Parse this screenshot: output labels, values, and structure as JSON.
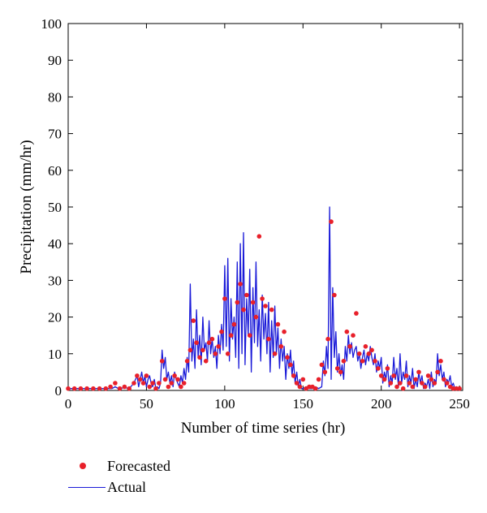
{
  "chart_data": {
    "type": "line",
    "xlabel": "Number of time series (hr)",
    "ylabel": "Precipitation (mm/hr)",
    "xlim": [
      0,
      252
    ],
    "ylim": [
      0,
      100
    ],
    "xticks": [
      0,
      50,
      100,
      150,
      200,
      250
    ],
    "yticks": [
      0,
      10,
      20,
      30,
      40,
      50,
      60,
      70,
      80,
      90,
      100
    ],
    "grid": false,
    "legend_position": "bottom-left, outside plot",
    "series": [
      {
        "name": "Forecasted",
        "style": "markers",
        "color": "#e8202a",
        "x": [
          0,
          4,
          8,
          12,
          16,
          20,
          24,
          27,
          30,
          33,
          36,
          39,
          42,
          44,
          46,
          48,
          50,
          52,
          54,
          56,
          58,
          60,
          62,
          64,
          66,
          68,
          70,
          72,
          74,
          76,
          78,
          80,
          82,
          84,
          86,
          88,
          90,
          92,
          94,
          96,
          98,
          100,
          102,
          104,
          106,
          108,
          110,
          112,
          114,
          116,
          118,
          120,
          122,
          124,
          126,
          128,
          130,
          132,
          134,
          136,
          138,
          140,
          142,
          144,
          146,
          148,
          150,
          152,
          154,
          156,
          158,
          160,
          162,
          164,
          166,
          168,
          170,
          172,
          174,
          176,
          178,
          180,
          182,
          184,
          186,
          188,
          190,
          192,
          194,
          196,
          198,
          200,
          202,
          204,
          206,
          208,
          210,
          212,
          214,
          216,
          218,
          220,
          222,
          224,
          226,
          228,
          230,
          232,
          234,
          236,
          238,
          240,
          242,
          244,
          246,
          248,
          250
        ],
        "y": [
          0.5,
          0.5,
          0.5,
          0.5,
          0.5,
          0.5,
          0.5,
          1,
          2,
          0.5,
          1,
          0.5,
          2,
          4,
          3,
          2,
          4,
          1,
          2,
          0.5,
          2,
          8,
          3,
          1,
          2,
          4,
          3,
          1,
          2,
          8,
          11,
          19,
          13,
          9,
          11,
          8,
          13,
          14,
          10,
          12,
          16,
          25,
          10,
          15,
          18,
          24,
          29,
          22,
          26,
          15,
          24,
          20,
          42,
          25,
          23,
          14,
          22,
          10,
          18,
          12,
          16,
          9,
          7,
          4,
          2,
          1,
          3,
          0.5,
          1,
          1,
          0.5,
          3,
          7,
          5,
          14,
          46,
          26,
          6,
          5,
          8,
          16,
          12,
          15,
          21,
          10,
          8,
          12,
          10,
          11,
          8,
          6,
          4,
          3,
          6,
          2,
          4,
          1,
          2,
          0.5,
          4,
          2,
          1,
          3,
          5,
          2,
          1,
          4,
          3,
          2,
          5,
          8,
          3,
          2,
          1,
          0.5,
          0.5,
          0.5
        ]
      },
      {
        "name": "Actual",
        "style": "line",
        "color": "#1a1ad8",
        "x": [
          0,
          2,
          4,
          6,
          8,
          10,
          12,
          14,
          16,
          18,
          20,
          22,
          24,
          26,
          28,
          30,
          32,
          34,
          36,
          38,
          40,
          42,
          44,
          45,
          46,
          47,
          48,
          49,
          50,
          51,
          52,
          53,
          54,
          55,
          56,
          57,
          58,
          59,
          60,
          61,
          62,
          63,
          64,
          65,
          66,
          67,
          68,
          69,
          70,
          71,
          72,
          73,
          74,
          75,
          76,
          77,
          78,
          79,
          80,
          81,
          82,
          83,
          84,
          85,
          86,
          87,
          88,
          89,
          90,
          91,
          92,
          93,
          94,
          95,
          96,
          97,
          98,
          99,
          100,
          101,
          102,
          103,
          104,
          105,
          106,
          107,
          108,
          109,
          110,
          111,
          112,
          113,
          114,
          115,
          116,
          117,
          118,
          119,
          120,
          121,
          122,
          123,
          124,
          125,
          126,
          127,
          128,
          129,
          130,
          131,
          132,
          133,
          134,
          135,
          136,
          137,
          138,
          139,
          140,
          141,
          142,
          143,
          144,
          145,
          146,
          147,
          148,
          149,
          150,
          152,
          154,
          156,
          158,
          160,
          162,
          163,
          164,
          165,
          166,
          167,
          168,
          169,
          170,
          171,
          172,
          173,
          174,
          175,
          176,
          177,
          178,
          179,
          180,
          181,
          182,
          183,
          184,
          185,
          186,
          187,
          188,
          189,
          190,
          191,
          192,
          193,
          194,
          195,
          196,
          197,
          198,
          199,
          200,
          201,
          202,
          203,
          204,
          205,
          206,
          207,
          208,
          209,
          210,
          211,
          212,
          213,
          214,
          215,
          216,
          217,
          218,
          219,
          220,
          221,
          222,
          223,
          224,
          225,
          226,
          227,
          228,
          229,
          230,
          231,
          232,
          233,
          234,
          235,
          236,
          237,
          238,
          239,
          240,
          241,
          242,
          243,
          244,
          245,
          246,
          247,
          248,
          249,
          250
        ],
        "y": [
          0.5,
          0.5,
          0.5,
          0.5,
          0.5,
          0.5,
          0.5,
          0.5,
          0.5,
          0.5,
          0.5,
          0.5,
          0.5,
          0.5,
          0.5,
          1,
          0.5,
          0.5,
          1,
          0.5,
          1,
          2,
          4,
          1,
          3,
          5,
          2,
          4,
          1,
          3,
          4,
          2,
          1,
          3,
          0.5,
          1,
          0.5,
          2,
          11,
          6,
          9,
          3,
          5,
          2,
          4,
          1,
          5,
          3,
          2,
          1,
          4,
          2,
          6,
          3,
          9,
          5,
          29,
          8,
          14,
          6,
          22,
          9,
          15,
          7,
          20,
          11,
          13,
          8,
          19,
          10,
          14,
          9,
          12,
          6,
          15,
          10,
          18,
          11,
          34,
          12,
          36,
          8,
          25,
          14,
          20,
          9,
          35,
          6,
          40,
          10,
          43,
          7,
          25,
          15,
          33,
          5,
          28,
          13,
          35,
          12,
          22,
          8,
          26,
          14,
          21,
          10,
          24,
          5,
          19,
          9,
          23,
          10,
          17,
          6,
          14,
          8,
          12,
          3,
          10,
          6,
          11,
          4,
          8,
          2,
          5,
          1,
          3,
          0.5,
          0.5,
          1,
          0.5,
          0.5,
          1,
          0.5,
          1,
          8,
          4,
          12,
          6,
          50,
          3,
          28,
          9,
          16,
          5,
          10,
          4,
          7,
          3,
          12,
          8,
          15,
          10,
          13,
          9,
          11,
          12,
          8,
          10,
          6,
          9,
          11,
          7,
          10,
          8,
          12,
          9,
          7,
          10,
          5,
          8,
          6,
          9,
          2,
          5,
          3,
          7,
          1,
          4,
          2,
          9,
          3,
          6,
          1,
          10,
          2,
          5,
          3,
          8,
          1,
          4,
          2,
          6,
          0.5,
          3,
          1,
          5,
          2,
          4,
          0.5,
          2,
          1,
          3,
          0.5,
          5,
          1,
          3,
          2,
          10,
          4,
          7,
          3,
          5,
          1,
          3,
          2,
          4,
          1,
          2,
          0.5,
          1,
          0.5,
          0.5
        ]
      }
    ]
  }
}
